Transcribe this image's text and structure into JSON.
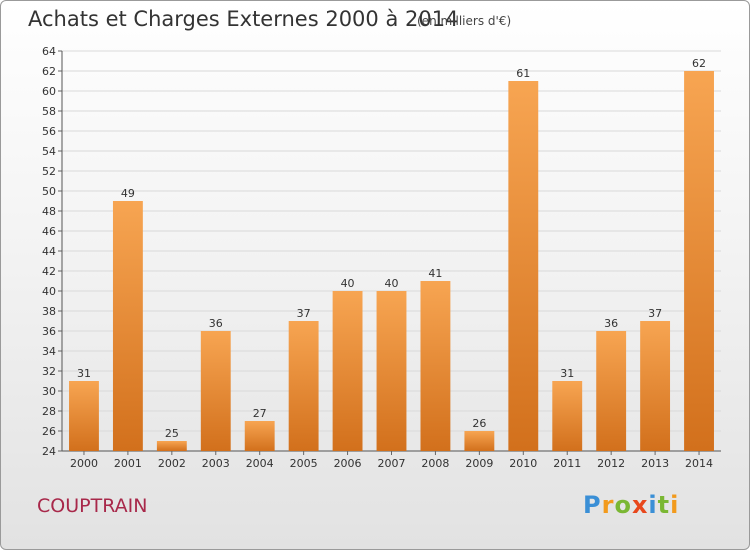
{
  "header": {
    "title": "Achats et Charges Externes 2000 à 2014",
    "subtitle": "(en milliers d'€)"
  },
  "footer": {
    "commune": "COUPTRAIN",
    "logo_text": "Proxiti"
  },
  "colors": {
    "bar_light": "#f7a552",
    "bar_dark": "#d2701c",
    "grid": "#d9d9d9",
    "commune": "#a8284a"
  },
  "chart_data": {
    "type": "bar",
    "title": "Achats et Charges Externes 2000 à 2014",
    "subtitle": "(en milliers d'€)",
    "xlabel": "",
    "ylabel": "",
    "categories": [
      "2000",
      "2001",
      "2002",
      "2003",
      "2004",
      "2005",
      "2006",
      "2007",
      "2008",
      "2009",
      "2010",
      "2011",
      "2012",
      "2013",
      "2014"
    ],
    "values": [
      31,
      49,
      25,
      36,
      27,
      37,
      40,
      40,
      41,
      26,
      61,
      31,
      36,
      37,
      62
    ],
    "ylim": [
      24,
      64
    ],
    "ytick_step": 2,
    "grid": true,
    "legend": "none"
  }
}
